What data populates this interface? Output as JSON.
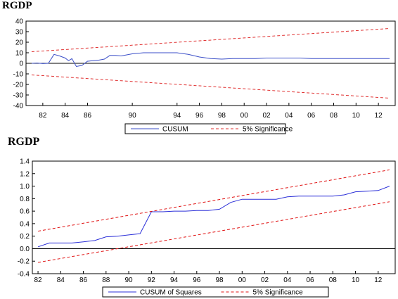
{
  "chart_data": [
    {
      "type": "line",
      "title": "RGDP",
      "xlabel": "",
      "ylabel": "",
      "x_range": [
        1980.5,
        2013.5
      ],
      "ylim": [
        -40,
        40
      ],
      "yticks": [
        -40,
        -30,
        -20,
        -10,
        0,
        10,
        20,
        30,
        40
      ],
      "xticks": [
        {
          "value": 1982,
          "label": "82"
        },
        {
          "value": 1984,
          "label": "84"
        },
        {
          "value": 1986,
          "label": "86"
        },
        {
          "value": 1990,
          "label": "90"
        },
        {
          "value": 1994,
          "label": "94"
        },
        {
          "value": 1996,
          "label": "96"
        },
        {
          "value": 1998,
          "label": "98"
        },
        {
          "value": 2000,
          "label": "00"
        },
        {
          "value": 2002,
          "label": "02"
        },
        {
          "value": 2004,
          "label": "04"
        },
        {
          "value": 2006,
          "label": "06"
        },
        {
          "value": 2008,
          "label": "08"
        },
        {
          "value": 2010,
          "label": "10"
        },
        {
          "value": 2012,
          "label": "12"
        }
      ],
      "grid": false,
      "legend_position": "bottom-center",
      "colors": {
        "series": "#3b4fc8",
        "bounds": "#e03030",
        "zero": "#000000"
      },
      "series": [
        {
          "name": "CUSUM",
          "style": "solid",
          "x": [
            1981,
            1981.5,
            1982,
            1982.5,
            1983,
            1983.5,
            1984,
            1984.3,
            1984.6,
            1985,
            1985.5,
            1986,
            1986.5,
            1987,
            1987.5,
            1988,
            1988.5,
            1989,
            1989.5,
            1990,
            1990.5,
            1991,
            1992,
            1993,
            1994,
            1995,
            1996,
            1997,
            1998,
            1999,
            2000,
            2001,
            2002,
            2003,
            2004,
            2005,
            2006,
            2007,
            2008,
            2009,
            2010,
            2011,
            2012,
            2013
          ],
          "values": [
            0,
            0.3,
            -0.3,
            0,
            8.5,
            7,
            5,
            2.5,
            4.5,
            -3,
            -2,
            2,
            2.5,
            3,
            4,
            7.5,
            7.5,
            7,
            8,
            9,
            9.5,
            10,
            10,
            10,
            10,
            8.5,
            6,
            4.5,
            4,
            4.5,
            4.5,
            4.5,
            5,
            5,
            5,
            5,
            4.5,
            4.5,
            4.5,
            4.5,
            4.5,
            4.5,
            4.5,
            4.5
          ]
        },
        {
          "name": "5% Significance",
          "style": "dashed",
          "bounds": [
            {
              "x": [
                1981,
                2013
              ],
              "values": [
                11,
                33
              ]
            },
            {
              "x": [
                1981,
                2013
              ],
              "values": [
                -11,
                -33
              ]
            }
          ]
        }
      ]
    },
    {
      "type": "line",
      "title": "RGDP",
      "xlabel": "",
      "ylabel": "",
      "x_range": [
        1981.5,
        2013.5
      ],
      "ylim": [
        -0.4,
        1.4
      ],
      "yticks": [
        -0.4,
        -0.2,
        0.0,
        0.2,
        0.4,
        0.6,
        0.8,
        1.0,
        1.2,
        1.4
      ],
      "ytick_labels": [
        "-0.4",
        "-0.2",
        "0.0",
        "0.2",
        "0.4",
        "0.6",
        "0.8",
        "1.0",
        "1.2",
        "1.4"
      ],
      "xticks": [
        {
          "value": 1982,
          "label": "82"
        },
        {
          "value": 1984,
          "label": "84"
        },
        {
          "value": 1986,
          "label": "86"
        },
        {
          "value": 1988,
          "label": "88"
        },
        {
          "value": 1990,
          "label": "90"
        },
        {
          "value": 1992,
          "label": "92"
        },
        {
          "value": 1994,
          "label": "94"
        },
        {
          "value": 1996,
          "label": "96"
        },
        {
          "value": 1998,
          "label": "98"
        },
        {
          "value": 2000,
          "label": "00"
        },
        {
          "value": 2002,
          "label": "02"
        },
        {
          "value": 2004,
          "label": "04"
        },
        {
          "value": 2006,
          "label": "06"
        },
        {
          "value": 2008,
          "label": "08"
        },
        {
          "value": 2010,
          "label": "10"
        },
        {
          "value": 2012,
          "label": "12"
        }
      ],
      "grid": false,
      "legend_position": "bottom-center",
      "colors": {
        "series": "#2b2fd8",
        "bounds": "#e01010",
        "zero": "#000000"
      },
      "series": [
        {
          "name": "CUSUM of Squares",
          "style": "solid",
          "x": [
            1982,
            1983,
            1984,
            1985,
            1986,
            1987,
            1988,
            1989,
            1990,
            1991,
            1992,
            1993,
            1994,
            1995,
            1996,
            1997,
            1998,
            1999,
            2000,
            2001,
            2002,
            2003,
            2004,
            2005,
            2006,
            2007,
            2008,
            2009,
            2010,
            2011,
            2012,
            2013
          ],
          "values": [
            0.03,
            0.09,
            0.09,
            0.09,
            0.11,
            0.13,
            0.19,
            0.2,
            0.22,
            0.24,
            0.59,
            0.59,
            0.6,
            0.6,
            0.61,
            0.61,
            0.63,
            0.74,
            0.79,
            0.79,
            0.79,
            0.79,
            0.83,
            0.84,
            0.84,
            0.84,
            0.84,
            0.86,
            0.91,
            0.92,
            0.93,
            1.0
          ]
        },
        {
          "name": "5% Significance",
          "style": "dashed",
          "bounds": [
            {
              "x": [
                1982,
                2013
              ],
              "values": [
                0.28,
                1.26
              ]
            },
            {
              "x": [
                1982,
                2013
              ],
              "values": [
                -0.22,
                0.75
              ]
            }
          ]
        }
      ]
    }
  ]
}
